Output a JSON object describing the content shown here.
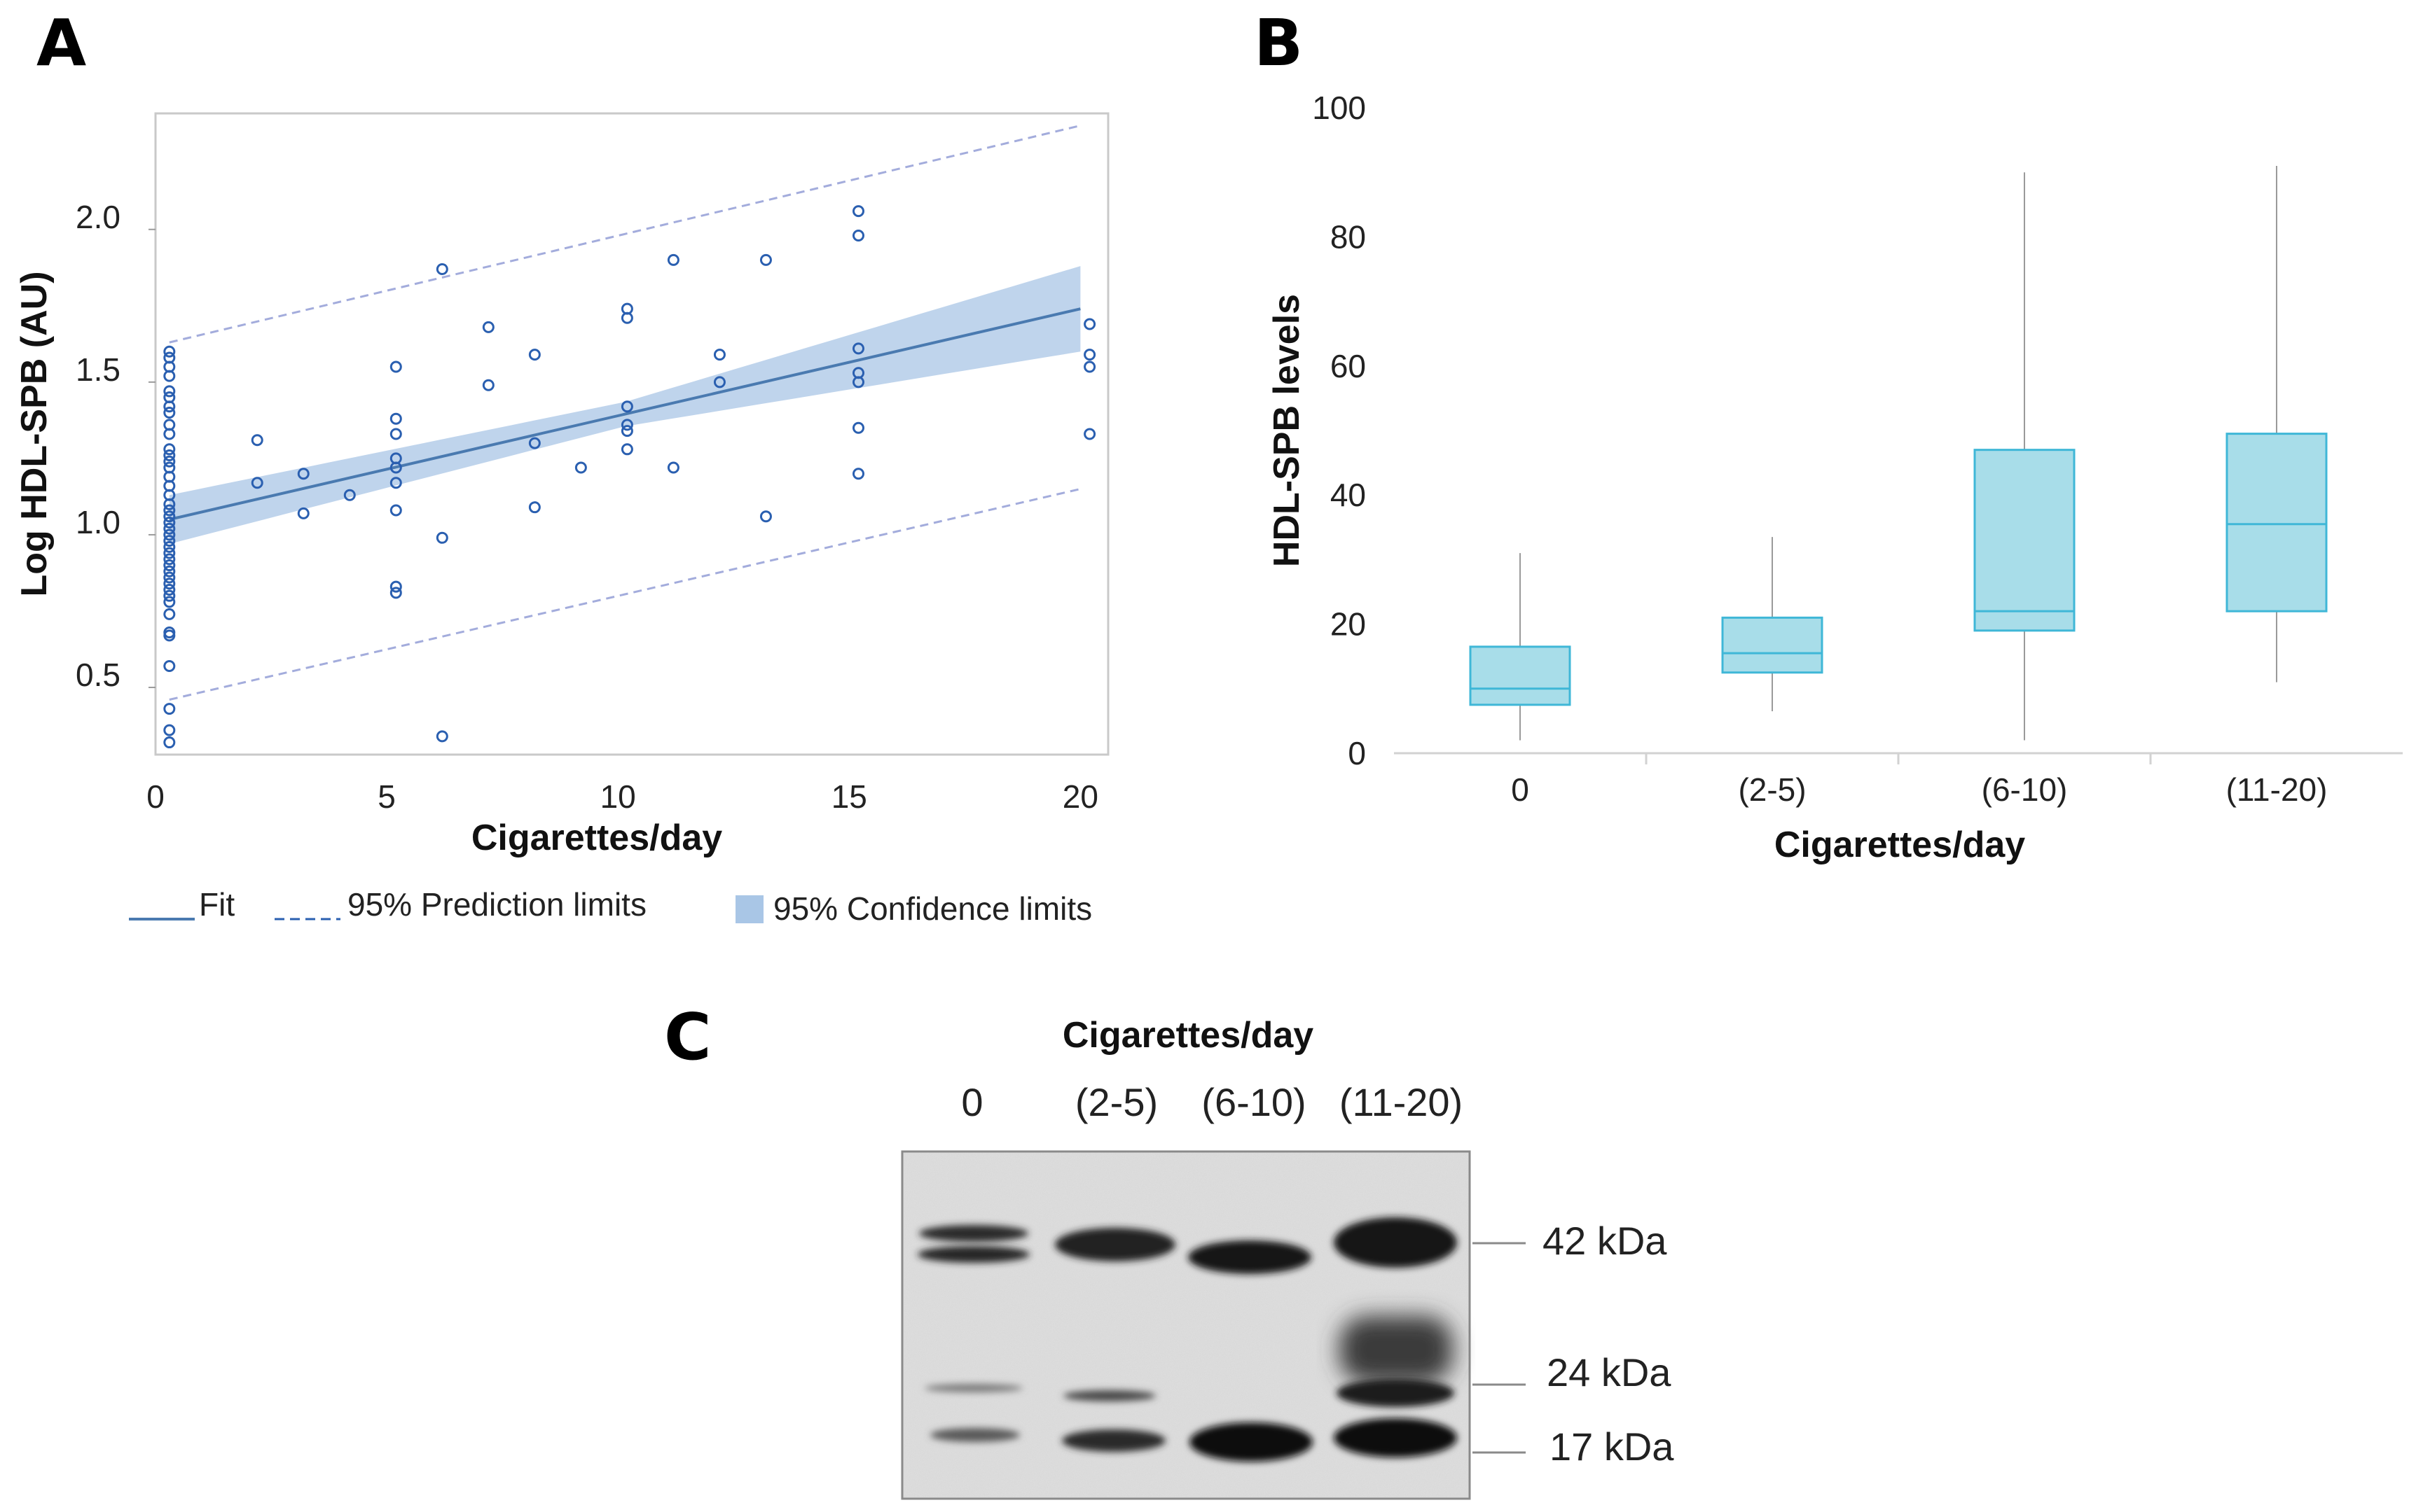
{
  "panels": {
    "a": "A",
    "b": "B",
    "c": "C"
  },
  "chart_data": [
    {
      "panel": "A",
      "type": "scatter",
      "xlabel": "Cigarettes/day",
      "ylabel": "Log HDL-SPB (AU)",
      "xlim": [
        0,
        20.6
      ],
      "ylim": [
        0.28,
        2.38
      ],
      "xticks": [
        "0",
        "5",
        "10",
        "15",
        "20"
      ],
      "yticks": [
        "0.5",
        "1.0",
        "1.5",
        "2.0"
      ],
      "legend": {
        "fit": "Fit",
        "prediction": "95% Prediction limits",
        "confidence": "95% Confidence limits",
        "position": "bottom"
      },
      "fit": {
        "x0": 0.3,
        "y0": 1.05,
        "x1": 20,
        "y1": 1.74
      },
      "confidence_half_width": {
        "at_start": 0.08,
        "at_middle": 0.04,
        "at_end": 0.14
      },
      "prediction": {
        "lower": [
          [
            0.3,
            0.46
          ],
          [
            20,
            1.15
          ]
        ],
        "upper": [
          [
            0.3,
            1.63
          ],
          [
            20,
            2.34
          ]
        ]
      },
      "points": [
        [
          0.3,
          1.6
        ],
        [
          0.3,
          1.58
        ],
        [
          0.3,
          1.55
        ],
        [
          0.3,
          1.52
        ],
        [
          0.3,
          1.47
        ],
        [
          0.3,
          1.45
        ],
        [
          0.3,
          1.42
        ],
        [
          0.3,
          1.4
        ],
        [
          0.3,
          1.36
        ],
        [
          0.3,
          1.33
        ],
        [
          0.3,
          1.28
        ],
        [
          0.3,
          1.26
        ],
        [
          0.3,
          1.24
        ],
        [
          0.3,
          1.22
        ],
        [
          0.3,
          1.19
        ],
        [
          0.3,
          1.16
        ],
        [
          0.3,
          1.13
        ],
        [
          0.3,
          1.1
        ],
        [
          0.3,
          1.08
        ],
        [
          0.3,
          1.06
        ],
        [
          0.3,
          1.04
        ],
        [
          0.3,
          1.02
        ],
        [
          0.3,
          1.0
        ],
        [
          0.3,
          0.98
        ],
        [
          0.3,
          0.96
        ],
        [
          0.3,
          0.94
        ],
        [
          0.3,
          0.92
        ],
        [
          0.3,
          0.9
        ],
        [
          0.3,
          0.88
        ],
        [
          0.3,
          0.86
        ],
        [
          0.3,
          0.84
        ],
        [
          0.3,
          0.82
        ],
        [
          0.3,
          0.8
        ],
        [
          0.3,
          0.78
        ],
        [
          0.3,
          0.74
        ],
        [
          0.3,
          0.68
        ],
        [
          0.3,
          0.67
        ],
        [
          0.3,
          0.57
        ],
        [
          0.3,
          0.43
        ],
        [
          0.3,
          0.36
        ],
        [
          0.3,
          0.32
        ],
        [
          2.2,
          1.31
        ],
        [
          2.2,
          1.17
        ],
        [
          3.2,
          1.2
        ],
        [
          3.2,
          1.07
        ],
        [
          4.2,
          1.13
        ],
        [
          5.2,
          1.55
        ],
        [
          5.2,
          1.38
        ],
        [
          5.2,
          1.33
        ],
        [
          5.2,
          1.25
        ],
        [
          5.2,
          1.22
        ],
        [
          5.2,
          1.17
        ],
        [
          5.2,
          1.08
        ],
        [
          5.2,
          0.83
        ],
        [
          5.2,
          0.81
        ],
        [
          6.2,
          1.87
        ],
        [
          6.2,
          0.99
        ],
        [
          6.2,
          0.34
        ],
        [
          7.2,
          1.68
        ],
        [
          7.2,
          1.49
        ],
        [
          8.2,
          1.59
        ],
        [
          8.2,
          1.3
        ],
        [
          8.2,
          1.09
        ],
        [
          9.2,
          1.22
        ],
        [
          10.2,
          1.74
        ],
        [
          10.2,
          1.71
        ],
        [
          10.2,
          1.42
        ],
        [
          10.2,
          1.36
        ],
        [
          10.2,
          1.34
        ],
        [
          10.2,
          1.28
        ],
        [
          11.2,
          1.9
        ],
        [
          11.2,
          1.22
        ],
        [
          12.2,
          1.59
        ],
        [
          12.2,
          1.5
        ],
        [
          13.2,
          1.9
        ],
        [
          13.2,
          1.06
        ],
        [
          15.2,
          2.06
        ],
        [
          15.2,
          1.98
        ],
        [
          15.2,
          1.61
        ],
        [
          15.2,
          1.53
        ],
        [
          15.2,
          1.5
        ],
        [
          15.2,
          1.35
        ],
        [
          15.2,
          1.2
        ],
        [
          20.2,
          1.69
        ],
        [
          20.2,
          1.59
        ],
        [
          20.2,
          1.55
        ],
        [
          20.2,
          1.33
        ]
      ],
      "colors": {
        "points": "#2a5fb0",
        "fit": "#4a7ab0",
        "band": "#a9c6e6",
        "prediction": "#a3acdc"
      }
    },
    {
      "panel": "B",
      "type": "box",
      "xlabel": "Cigarettes/day",
      "ylabel": "HDL-SPB levels",
      "ylim": [
        0,
        100
      ],
      "yticks": [
        "0",
        "20",
        "40",
        "60",
        "80",
        "100"
      ],
      "categories": [
        "0",
        "(2-5)",
        "(6-10)",
        "(11-20)"
      ],
      "boxes": [
        {
          "min": 2,
          "q1": 7.5,
          "median": 10,
          "q3": 16.5,
          "max": 31
        },
        {
          "min": 6.5,
          "q1": 12.5,
          "median": 15.5,
          "q3": 21,
          "max": 33.5
        },
        {
          "min": 2,
          "q1": 19,
          "median": 22,
          "q3": 47,
          "max": 90
        },
        {
          "min": 11,
          "q1": 22,
          "median": 35.5,
          "q3": 49.5,
          "max": 91
        }
      ],
      "colors": {
        "box_fill": "#a8dde9",
        "box_edge": "#3fb7d7",
        "whisker": "#9a9a9a"
      }
    }
  ],
  "western_blot": {
    "title": "Cigarettes/day",
    "lanes": [
      "0",
      "(2-5)",
      "(6-10)",
      "(11-20)"
    ],
    "markers": [
      "42 kDa",
      "24 kDa",
      "17 kDa"
    ]
  }
}
